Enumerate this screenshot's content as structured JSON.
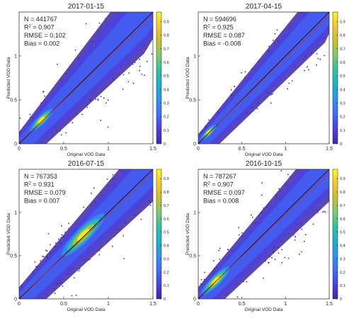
{
  "chart_data": [
    {
      "type": "scatter",
      "title": "2017-01-15",
      "xlabel": "Original VOD Data",
      "ylabel": "Predicted VOD Data",
      "xlim": [
        0,
        1.5
      ],
      "ylim": [
        0,
        1.5
      ],
      "xticks": [
        "0",
        "0.5",
        "1",
        "1.5"
      ],
      "yticks": [
        "0",
        "0.5",
        "1"
      ],
      "colorbar_ticks": [
        "0",
        "0.1",
        "0.2",
        "0.3",
        "0.4",
        "0.5",
        "0.6",
        "0.7",
        "0.8",
        "0.9"
      ],
      "stats": {
        "n": "N = 441767",
        "r2_prefix": "R",
        "r2_exp": "2",
        "r2_value": " = 0.907",
        "rmse": "RMSE = 0.102",
        "bias": "Bias = 0.002"
      },
      "density": {
        "peak_x": 0.25,
        "peak_y": 0.27,
        "spread": 0.32,
        "bulk_to_x": 1.4,
        "wide": true
      },
      "lines": {
        "one_to_one": "#000000",
        "fit": "#c0392b"
      }
    },
    {
      "type": "scatter",
      "title": "2017-04-15",
      "xlabel": "Original VOD Data",
      "ylabel": "Predicted VOD Data",
      "xlim": [
        0,
        1.5
      ],
      "ylim": [
        0,
        1.5
      ],
      "xticks": [
        "0",
        "0.5",
        "1",
        "1.5"
      ],
      "yticks": [
        "0",
        "0.5",
        "1"
      ],
      "colorbar_ticks": [
        "0",
        "0.1",
        "0.2",
        "0.3",
        "0.4",
        "0.5",
        "0.6",
        "0.7",
        "0.8",
        "0.9"
      ],
      "stats": {
        "n": "N = 594696",
        "r2_prefix": "R",
        "r2_exp": "2",
        "r2_value": " = 0.925",
        "rmse": "RMSE = 0.087",
        "bias": "Bias = -0.008"
      },
      "density": {
        "peak_x": 0.12,
        "peak_y": 0.13,
        "spread": 0.22,
        "bulk_to_x": 1.45,
        "wide": false
      },
      "lines": {
        "one_to_one": "#000000",
        "fit": "#c0392b"
      }
    },
    {
      "type": "scatter",
      "title": "2016-07-15",
      "xlabel": "Original VOD Data",
      "ylabel": "Predicted VOD Data",
      "xlim": [
        0,
        1.5
      ],
      "ylim": [
        0,
        1.5
      ],
      "xticks": [
        "0",
        "0.5",
        "1",
        "1.5"
      ],
      "yticks": [
        "0",
        "0.5",
        "1"
      ],
      "colorbar_ticks": [
        "0",
        "0.1",
        "0.2",
        "0.3",
        "0.4",
        "0.5",
        "0.6",
        "0.7",
        "0.8",
        "0.9"
      ],
      "stats": {
        "n": "N = 767353",
        "r2_prefix": "R",
        "r2_exp": "2",
        "r2_value": " = 0.931",
        "rmse": "RMSE = 0.079",
        "bias": "Bias = 0.007"
      },
      "density": {
        "peak_x": 0.72,
        "peak_y": 0.74,
        "spread": 0.6,
        "bulk_to_x": 1.5,
        "wide": true
      },
      "lines": {
        "one_to_one": "#000000",
        "fit": "#c0392b"
      }
    },
    {
      "type": "scatter",
      "title": "2016-10-15",
      "xlabel": "Original VOD Data",
      "ylabel": "Predicted VOD Data",
      "xlim": [
        0,
        1.5
      ],
      "ylim": [
        0,
        1.5
      ],
      "xticks": [
        "0",
        "0.5",
        "1",
        "1.5"
      ],
      "yticks": [
        "0",
        "0.5",
        "1"
      ],
      "colorbar_ticks": [
        "0",
        "0.1",
        "0.2",
        "0.3",
        "0.4",
        "0.5",
        "0.6",
        "0.7",
        "0.8",
        "0.9"
      ],
      "stats": {
        "n": "N = 787267",
        "r2_prefix": "R",
        "r2_exp": "2",
        "r2_value": " = 0.907",
        "rmse": "RMSE = 0.097",
        "bias": "Bias = 0.008"
      },
      "density": {
        "peak_x": 0.2,
        "peak_y": 0.21,
        "spread": 0.4,
        "bulk_to_x": 1.5,
        "wide": true
      },
      "lines": {
        "one_to_one": "#000000",
        "fit": "#c0392b"
      }
    }
  ],
  "colormap": [
    "#3e26a8",
    "#4742e5",
    "#3f6cfd",
    "#2d93f1",
    "#16b3cf",
    "#2cc3a4",
    "#7bcb6d",
    "#c8c12b",
    "#f5c72e",
    "#f9fb15"
  ],
  "background": "#ffffff"
}
